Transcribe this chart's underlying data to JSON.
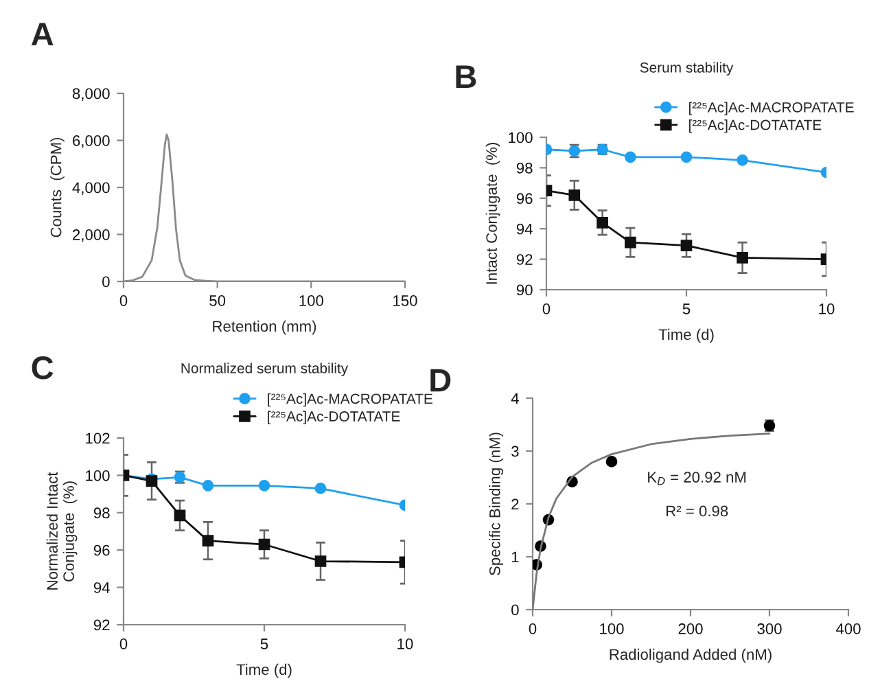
{
  "chart_data": [
    {
      "type": "line",
      "xlabel": "Retention (mm)",
      "ylabel": "Counts  (CPM)",
      "annotations": [
        "A"
      ],
      "xlim": [
        0,
        150
      ],
      "xticks": [
        0,
        50,
        100,
        150
      ],
      "ylim": [
        0,
        8000
      ],
      "yticks": [
        {
          "value": 0,
          "label": "0"
        },
        {
          "value": 2000,
          "label": "2,000"
        },
        {
          "value": 4000,
          "label": "4,000"
        },
        {
          "value": 6000,
          "label": "6,000"
        },
        {
          "value": 8000,
          "label": "8,000"
        }
      ],
      "grid": false,
      "legend": false,
      "marker": "none",
      "series": [
        {
          "color": "#8a8a8a",
          "x": [
            0,
            5,
            10,
            15,
            18,
            20,
            22,
            23,
            24,
            26,
            28,
            30,
            33,
            38,
            45,
            50,
            150
          ],
          "values": [
            0,
            50,
            200,
            900,
            2300,
            4000,
            5800,
            6250,
            6000,
            4300,
            2200,
            900,
            250,
            60,
            20,
            0,
            0
          ]
        }
      ]
    },
    {
      "type": "line",
      "title": "Serum stability",
      "xlabel": "Time (d)",
      "ylabel": "Intact Conjugate  (%)",
      "annotations": [
        "B"
      ],
      "xlim": [
        0,
        10
      ],
      "xticks": [
        0,
        5,
        10
      ],
      "ylim": [
        90,
        100
      ],
      "yticks": [
        90,
        92,
        94,
        96,
        98,
        100
      ],
      "grid": false,
      "legend": "top right",
      "series": [
        {
          "name": "[²²⁵Ac]Ac-MACROPATATE",
          "color": "#1ea0f0",
          "marker": "circle",
          "x": [
            0,
            1,
            2,
            3,
            5,
            7,
            10
          ],
          "values": [
            99.2,
            99.1,
            99.2,
            98.7,
            98.7,
            98.5,
            97.7
          ],
          "errors": [
            0.2,
            0.4,
            0.3,
            null,
            null,
            null,
            null
          ]
        },
        {
          "name": "[²²⁵Ac]Ac-DOTATATE",
          "color": "#111111",
          "marker": "square",
          "x": [
            0,
            1,
            2,
            3,
            5,
            7,
            10
          ],
          "values": [
            96.5,
            96.2,
            94.4,
            93.1,
            92.9,
            92.1,
            92.0
          ],
          "errors": [
            1.0,
            0.95,
            0.8,
            0.95,
            0.75,
            1.0,
            1.1
          ]
        }
      ]
    },
    {
      "type": "line",
      "title": "Normalized serum stability",
      "xlabel": "Time (d)",
      "ylabel": "Normalized Intact\nConjugate  (%)",
      "annotations": [
        "C"
      ],
      "xlim": [
        0,
        10
      ],
      "xticks": [
        0,
        5,
        10
      ],
      "ylim": [
        92,
        102
      ],
      "yticks": [
        92,
        94,
        96,
        98,
        100,
        102
      ],
      "grid": false,
      "legend": "top right",
      "series": [
        {
          "name": "[²²⁵Ac]Ac-MACROPATATE",
          "color": "#1ea0f0",
          "marker": "circle",
          "x": [
            0,
            1,
            2,
            3,
            5,
            7,
            10
          ],
          "values": [
            100,
            99.8,
            99.9,
            99.45,
            99.45,
            99.3,
            98.4
          ],
          "errors": [
            null,
            null,
            0.3,
            null,
            null,
            null,
            null
          ]
        },
        {
          "name": "[²²⁵Ac]Ac-DOTATATE",
          "color": "#111111",
          "marker": "square",
          "x": [
            0,
            1,
            2,
            3,
            5,
            7,
            10
          ],
          "values": [
            100,
            99.7,
            97.85,
            96.5,
            96.3,
            95.4,
            95.35
          ],
          "errors": [
            1.1,
            1.0,
            0.8,
            1.0,
            0.75,
            1.0,
            1.15
          ]
        }
      ]
    },
    {
      "type": "scatter",
      "xlabel": "Radioligand Added (nM)",
      "ylabel": "Specific Binding (nM)",
      "annotations": [
        "D",
        "K$_{D}$ = 20.92 nM",
        "R² = 0.98"
      ],
      "xlim": [
        0,
        400
      ],
      "xticks": [
        0,
        100,
        200,
        300,
        400
      ],
      "ylim": [
        0,
        4
      ],
      "yticks": [
        0,
        1,
        2,
        3,
        4
      ],
      "grid": false,
      "legend": false,
      "series": [
        {
          "color": "#000000",
          "marker": "circle",
          "x": [
            5,
            10,
            20,
            50,
            100,
            300
          ],
          "values": [
            0.85,
            1.2,
            1.7,
            2.42,
            2.8,
            3.48
          ],
          "errors": [
            null,
            null,
            null,
            null,
            null,
            0.1
          ]
        },
        {
          "type": "line",
          "color": "#777777",
          "marker": "none",
          "x": [
            0,
            5,
            10,
            20,
            30,
            50,
            75,
            100,
            150,
            200,
            250,
            300
          ],
          "values": [
            0,
            0.69,
            1.15,
            1.74,
            2.1,
            2.51,
            2.78,
            2.94,
            3.13,
            3.23,
            3.29,
            3.33
          ]
        }
      ]
    }
  ]
}
